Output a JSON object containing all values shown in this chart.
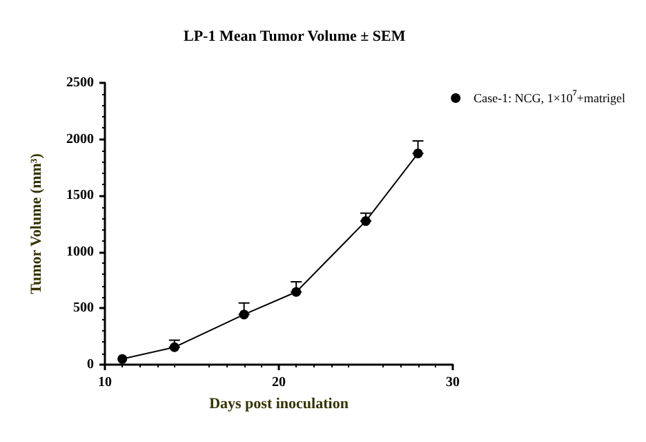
{
  "chart_data": {
    "type": "line",
    "title": "LP-1 Mean Tumor Volume ± SEM",
    "xlabel": "Days post inoculation",
    "ylabel": "Tumor Volume (mm³)",
    "x": [
      11,
      14,
      18,
      21,
      25,
      28
    ],
    "series": [
      {
        "name": "Case-1: NCG, 1×10$^{7}$+matrigel",
        "color": "#000000",
        "values": [
          50,
          155,
          445,
          645,
          1274,
          1874
        ],
        "errors": [
          null,
          [
            155,
            217
          ],
          [
            445,
            547
          ],
          [
            645,
            735
          ],
          [
            1274,
            1344
          ],
          [
            1874,
            1985
          ]
        ]
      }
    ],
    "xlim": [
      10,
      30
    ],
    "xticks": [
      10,
      20,
      30
    ],
    "ylim": [
      0,
      2500
    ],
    "yticks": [
      0,
      500,
      1000,
      1500,
      2000,
      2500
    ],
    "grid": false,
    "legend": "top right",
    "marker": "circle",
    "line_style": "solid"
  }
}
